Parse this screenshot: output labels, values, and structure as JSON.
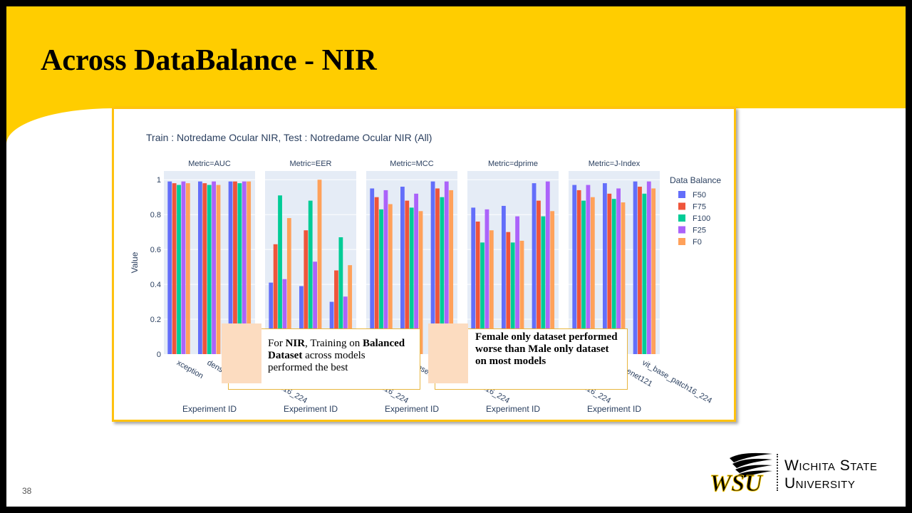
{
  "slide": {
    "title": "Across DataBalance - NIR",
    "page_number": "38",
    "note_left": {
      "segments": [
        {
          "text": "For ",
          "bold": false
        },
        {
          "text": "NIR",
          "bold": true
        },
        {
          "text": ", Training  on ",
          "bold": false
        },
        {
          "text": "Balanced Dataset",
          "bold": true
        },
        {
          "text": " across models performed the best",
          "bold": false
        }
      ]
    },
    "note_right": {
      "text": "Female only dataset performed worse than Male only dataset on most models"
    },
    "logo": {
      "mark": "WSU",
      "line1": "Wichita State",
      "line2": "University",
      "icon": "wheat-shocker-logo"
    }
  },
  "chart_data": {
    "type": "bar",
    "title": "Train : Notredame Ocular NIR, Test : Notredame Ocular NIR (All)",
    "ylabel": "Value",
    "xlabel": "Experiment ID",
    "ylim": [
      0,
      1.05
    ],
    "yticks": [
      0,
      0.2,
      0.4,
      0.6,
      0.8,
      1
    ],
    "ytick_labels": [
      "0",
      "0.2",
      "0.4",
      "0.6",
      "0.8",
      "1"
    ],
    "categories": [
      "xception",
      "densenet121",
      "vit_base_patch16_224"
    ],
    "legend": {
      "title": "Data Balance",
      "placement": "right"
    },
    "series_names": [
      "F50",
      "F75",
      "F100",
      "F25",
      "F0"
    ],
    "series_colors": [
      "#636efa",
      "#ef553b",
      "#00cc96",
      "#ab63fa",
      "#ffa15a"
    ],
    "grid": true,
    "facets": [
      {
        "label": "Metric=AUC",
        "values": [
          [
            0.99,
            0.99,
            0.99
          ],
          [
            0.98,
            0.98,
            0.99
          ],
          [
            0.97,
            0.97,
            0.98
          ],
          [
            0.99,
            0.99,
            0.99
          ],
          [
            0.98,
            0.97,
            0.99
          ]
        ]
      },
      {
        "label": "Metric=EER",
        "values": [
          [
            0.41,
            0.39,
            0.3
          ],
          [
            0.63,
            0.71,
            0.48
          ],
          [
            0.91,
            0.88,
            0.67
          ],
          [
            0.43,
            0.53,
            0.33
          ],
          [
            0.78,
            1.0,
            0.51
          ]
        ]
      },
      {
        "label": "Metric=MCC",
        "values": [
          [
            0.95,
            0.96,
            0.99
          ],
          [
            0.9,
            0.88,
            0.95
          ],
          [
            0.83,
            0.84,
            0.9
          ],
          [
            0.94,
            0.92,
            0.99
          ],
          [
            0.86,
            0.82,
            0.94
          ]
        ]
      },
      {
        "label": "Metric=dprime",
        "values": [
          [
            0.84,
            0.85,
            0.98
          ],
          [
            0.76,
            0.7,
            0.88
          ],
          [
            0.64,
            0.64,
            0.79
          ],
          [
            0.83,
            0.79,
            0.99
          ],
          [
            0.71,
            0.65,
            0.82
          ]
        ]
      },
      {
        "label": "Metric=J-Index",
        "values": [
          [
            0.97,
            0.98,
            0.99
          ],
          [
            0.94,
            0.92,
            0.96
          ],
          [
            0.88,
            0.89,
            0.92
          ],
          [
            0.97,
            0.95,
            0.99
          ],
          [
            0.9,
            0.87,
            0.95
          ]
        ]
      }
    ]
  }
}
